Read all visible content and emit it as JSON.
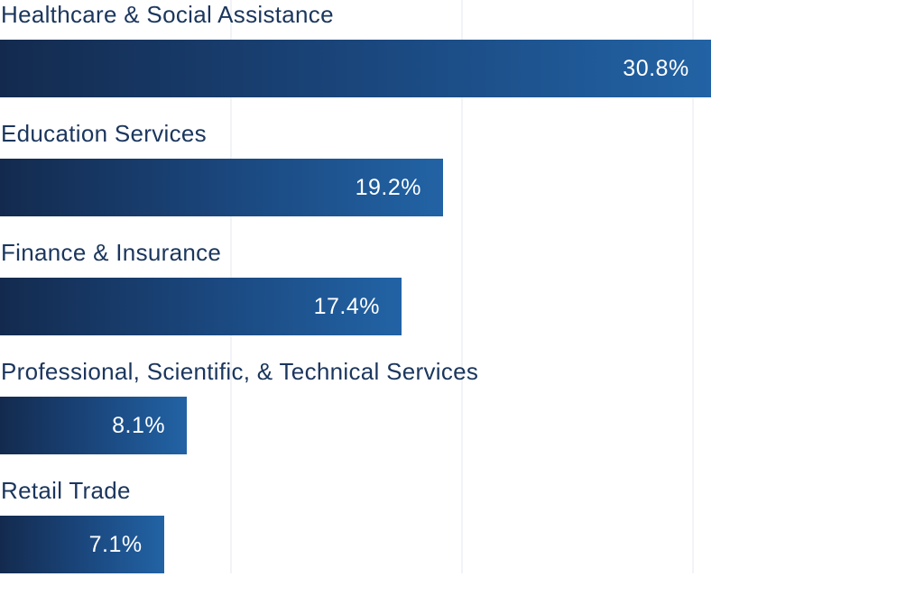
{
  "chart_data": {
    "type": "bar",
    "orientation": "horizontal",
    "categories": [
      "Healthcare & Social Assistance",
      "Education Services",
      "Finance & Insurance",
      "Professional, Scientific, & Technical Services",
      "Retail Trade"
    ],
    "values": [
      30.8,
      19.2,
      17.4,
      8.1,
      7.1
    ],
    "value_labels": [
      "30.8%",
      "19.2%",
      "17.4%",
      "8.1%",
      "7.1%"
    ],
    "xlim": [
      0,
      40
    ],
    "grid": true,
    "gridlines": [
      10,
      20,
      30
    ],
    "colors": {
      "bar_start": "#132a4e",
      "bar_end": "#2263a5",
      "label": "#1b365d",
      "value_text": "#ffffff",
      "grid": "#f1f3f6"
    }
  }
}
